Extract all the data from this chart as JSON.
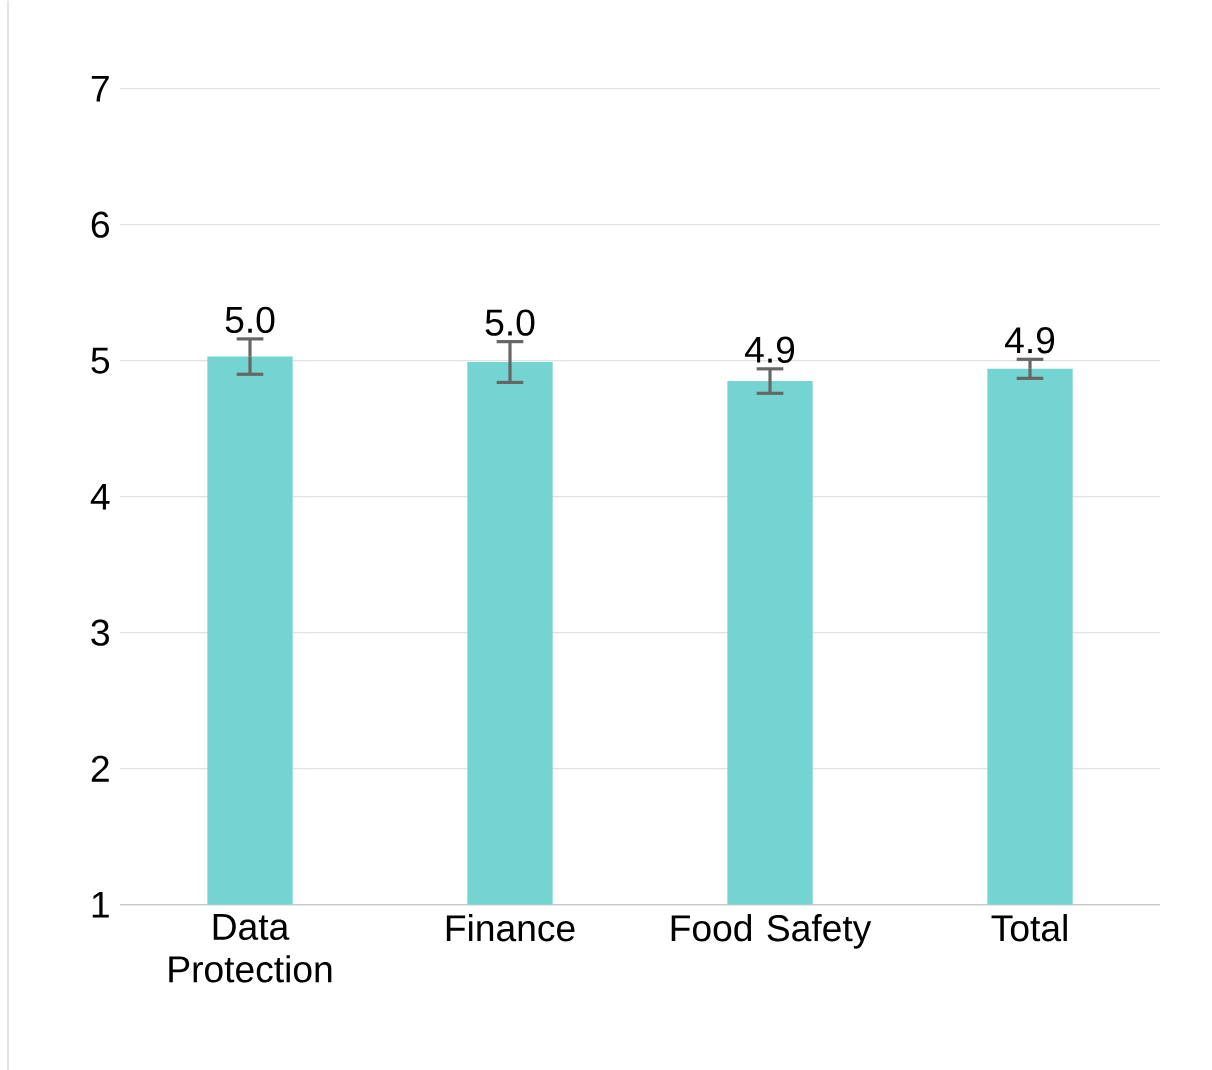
{
  "chart_data": {
    "type": "bar",
    "categories": [
      "Data Protection",
      "Finance",
      "Food Safety",
      "Total"
    ],
    "values": [
      5.03,
      4.99,
      4.85,
      4.94
    ],
    "errors": [
      0.13,
      0.15,
      0.09,
      0.07
    ],
    "value_labels": [
      "5.0",
      "5.0",
      "4.9",
      "4.9"
    ],
    "color": "#74d4d2",
    "ylim": [
      1,
      7
    ],
    "yticks": [
      1,
      2,
      3,
      4,
      5,
      6,
      7
    ],
    "grid": "y"
  }
}
